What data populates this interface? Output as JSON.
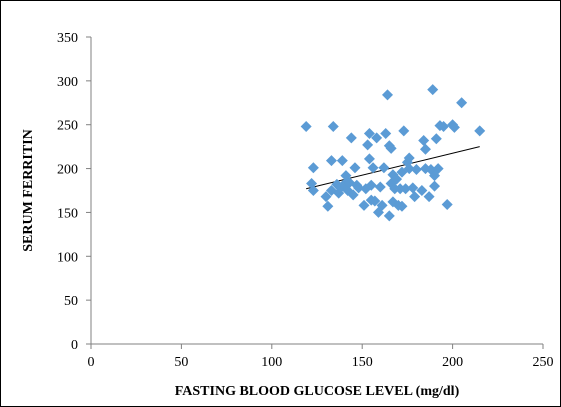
{
  "chart_data": {
    "type": "scatter",
    "title": "",
    "xlabel": "FASTING BLOOD GLUCOSE LEVEL (mg/dl)",
    "ylabel": "SERUM FERRITIN",
    "xlim": [
      0,
      250
    ],
    "ylim": [
      0,
      350
    ],
    "xticks": [
      "0",
      "50",
      "100",
      "150",
      "200",
      "250"
    ],
    "yticks": [
      "0",
      "50",
      "100",
      "150",
      "200",
      "250",
      "300",
      "350"
    ],
    "grid": false,
    "legend": "none",
    "marker": "diamond",
    "colors": {
      "marker": "#5b9bd5",
      "trendline": "#000000",
      "axis": "#808080"
    },
    "series": [
      {
        "points": [
          [
            119,
            248
          ],
          [
            122,
            183
          ],
          [
            123,
            175
          ],
          [
            123,
            201
          ],
          [
            130,
            168
          ],
          [
            131,
            157
          ],
          [
            133,
            209
          ],
          [
            133,
            175
          ],
          [
            134,
            248
          ],
          [
            136,
            182
          ],
          [
            137,
            172
          ],
          [
            138,
            178
          ],
          [
            139,
            209
          ],
          [
            140,
            182
          ],
          [
            141,
            192
          ],
          [
            142,
            175
          ],
          [
            143,
            184
          ],
          [
            144,
            235
          ],
          [
            145,
            170
          ],
          [
            146,
            201
          ],
          [
            147,
            181
          ],
          [
            148,
            178
          ],
          [
            151,
            158
          ],
          [
            152,
            177
          ],
          [
            153,
            227
          ],
          [
            154,
            240
          ],
          [
            154,
            211
          ],
          [
            155,
            164
          ],
          [
            155,
            181
          ],
          [
            156,
            201
          ],
          [
            157,
            163
          ],
          [
            158,
            235
          ],
          [
            159,
            150
          ],
          [
            160,
            179
          ],
          [
            161,
            158
          ],
          [
            162,
            201
          ],
          [
            163,
            240
          ],
          [
            164,
            284
          ],
          [
            165,
            146
          ],
          [
            165,
            226
          ],
          [
            166,
            183
          ],
          [
            166,
            223
          ],
          [
            167,
            162
          ],
          [
            167,
            193
          ],
          [
            168,
            177
          ],
          [
            169,
            188
          ],
          [
            170,
            158
          ],
          [
            171,
            177
          ],
          [
            172,
            157
          ],
          [
            172,
            196
          ],
          [
            173,
            243
          ],
          [
            174,
            177
          ],
          [
            175,
            207
          ],
          [
            176,
            212
          ],
          [
            176,
            200
          ],
          [
            178,
            178
          ],
          [
            179,
            168
          ],
          [
            180,
            199
          ],
          [
            183,
            175
          ],
          [
            184,
            232
          ],
          [
            185,
            200
          ],
          [
            185,
            222
          ],
          [
            187,
            168
          ],
          [
            188,
            199
          ],
          [
            189,
            290
          ],
          [
            190,
            180
          ],
          [
            190,
            192
          ],
          [
            191,
            234
          ],
          [
            192,
            200
          ],
          [
            193,
            249
          ],
          [
            195,
            248
          ],
          [
            197,
            159
          ],
          [
            200,
            250
          ],
          [
            201,
            247
          ],
          [
            205,
            275
          ],
          [
            215,
            243
          ]
        ]
      }
    ],
    "trendline": {
      "x": [
        119,
        215
      ],
      "y": [
        177,
        225
      ]
    }
  }
}
